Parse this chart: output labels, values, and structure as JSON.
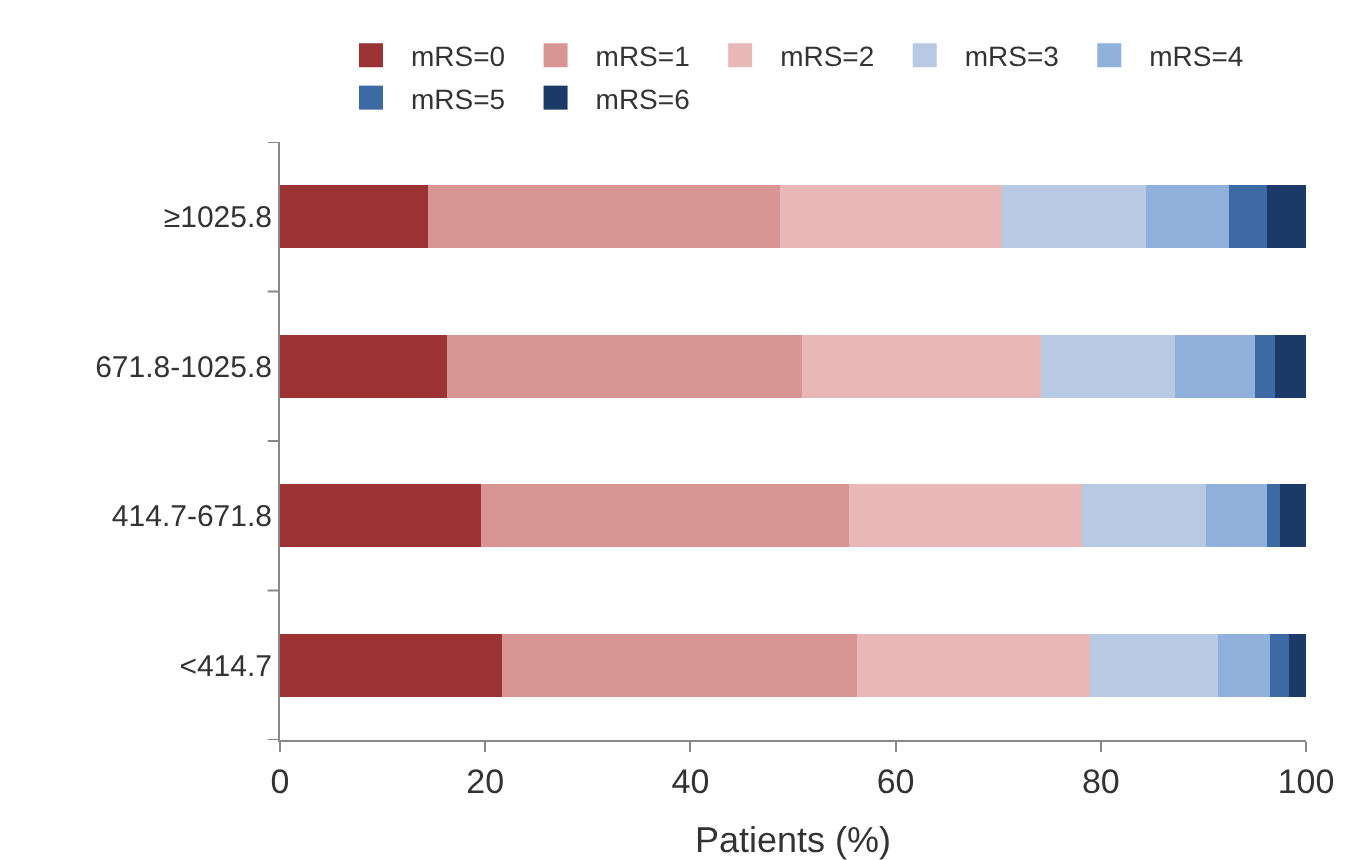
{
  "chart_data": {
    "type": "bar",
    "orientation": "horizontal",
    "stacked": true,
    "xlabel": "Patients (%)",
    "categories": [
      "≥1025.8",
      "671.8-1025.8",
      "414.7-671.8",
      "<414.7"
    ],
    "series": [
      {
        "name": "mRS=0",
        "color": "#9b3234",
        "values": [
          14.4,
          16.3,
          19.6,
          21.6
        ]
      },
      {
        "name": "mRS=1",
        "color": "#d99494",
        "values": [
          34.3,
          34.6,
          35.9,
          34.6
        ]
      },
      {
        "name": "mRS=2",
        "color": "#e8b7b7",
        "values": [
          21.7,
          23.3,
          22.7,
          22.7
        ]
      },
      {
        "name": "mRS=3",
        "color": "#b7c9e3",
        "values": [
          14.0,
          13.0,
          12.1,
          12.5
        ]
      },
      {
        "name": "mRS=4",
        "color": "#8fb1dc",
        "values": [
          8.1,
          7.8,
          5.9,
          5.1
        ]
      },
      {
        "name": "mRS=5",
        "color": "#3d6aa3",
        "values": [
          3.7,
          2.0,
          1.3,
          1.8
        ]
      },
      {
        "name": "mRS=6",
        "color": "#1b3a68",
        "values": [
          3.8,
          3.0,
          2.5,
          1.7
        ]
      }
    ],
    "xlim": [
      0,
      100
    ],
    "xticks": [
      0,
      20,
      40,
      60,
      80,
      100
    ],
    "grid": false,
    "legend": "top"
  }
}
